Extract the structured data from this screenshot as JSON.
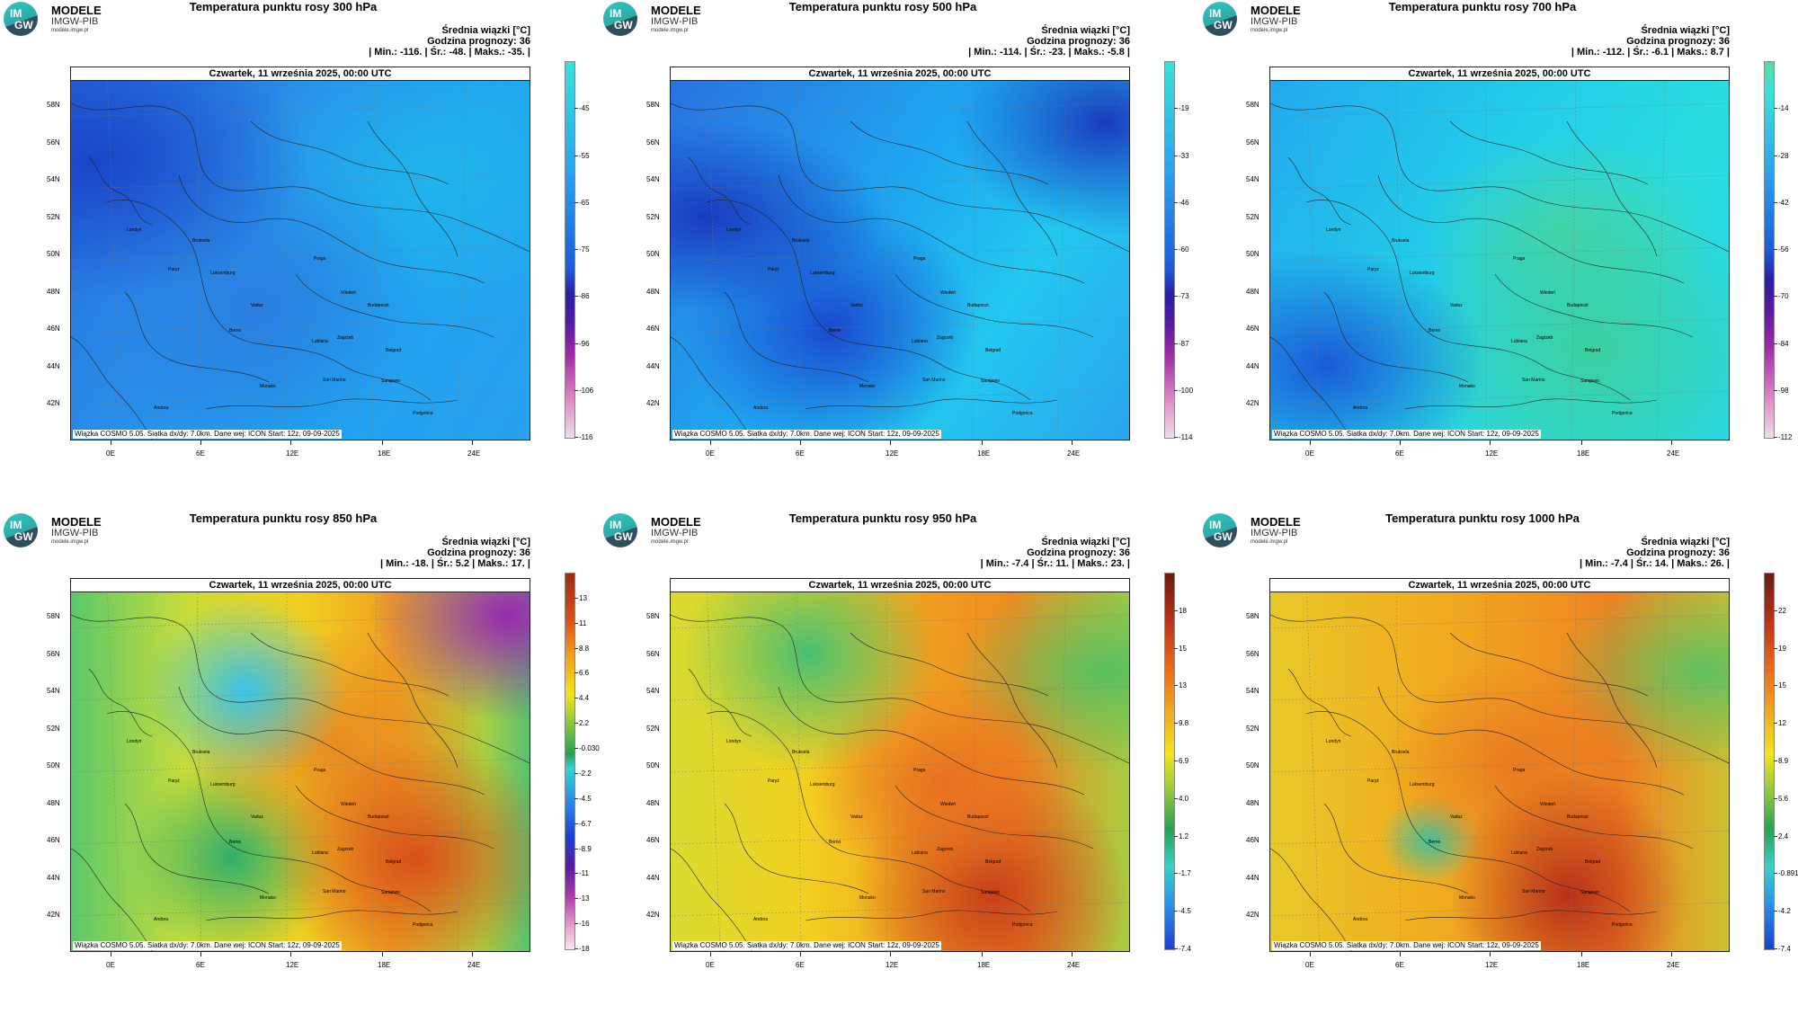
{
  "logo": {
    "name": "MODELE",
    "sub": "IMGW-PIB",
    "url": "modele.imgw.pl"
  },
  "common": {
    "legend_title": "Średnia wiązki [°C]",
    "forecast_hour": "Godzina prognozy: 36",
    "date": "Czwartek, 11 września 2025, 00:00 UTC",
    "footer": "Wiązka COSMO 5.05. Siatka dx/dy: 7.0km. Dane wej: ICON Start: 12z, 09-09-2025"
  },
  "lat_labels": [
    "58N",
    "56N",
    "54N",
    "52N",
    "50N",
    "48N",
    "46N",
    "44N",
    "42N"
  ],
  "lon_labels": [
    "0E",
    "6E",
    "12E",
    "18E",
    "24E"
  ],
  "cities": [
    "Londyn",
    "Bruksela",
    "Paryż",
    "Luksemburg",
    "Praga",
    "Berno",
    "Vaduz",
    "Wiedeń",
    "Budapeszt",
    "Zagrzeb",
    "Lublana",
    "Belgrad",
    "Sarajewo",
    "San Marino",
    "Monako",
    "Andora",
    "Podgorica"
  ],
  "panels": [
    {
      "title": "Temperatura punktu rosy 300 hPa",
      "stats": "| Min.:   -116. | Śr.:   -48. | Maks.:   -35. |",
      "colorbar": [
        "-45",
        "-55",
        "-65",
        "-75",
        "-86",
        "-96",
        "-106",
        "-116"
      ],
      "palette": "cold",
      "gradient": "linear-gradient(180deg,#38e2da 0%,#2aa0ef 30%,#1d5bd8 55%,#2a1ea0 62%,#5a1aa0 70%,#a02aa6 78%,#e08ac8 90%,#eae0ea 100%)"
    },
    {
      "title": "Temperatura punktu rosy 500 hPa",
      "stats": "| Min.:   -114. | Śr.:   -23. | Maks.:   -5.8 |",
      "colorbar": [
        "-19",
        "-33",
        "-46",
        "-60",
        "-73",
        "-87",
        "-100",
        "-114"
      ],
      "palette": "cold",
      "gradient": "linear-gradient(180deg,#38e2da 0%,#2aa0ef 30%,#1d5bd8 55%,#2a1ea0 62%,#5a1aa0 70%,#a02aa6 78%,#e08ac8 90%,#eae0ea 100%)"
    },
    {
      "title": "Temperatura punktu rosy 700 hPa",
      "stats": "| Min.:   -112. | Śr.:   -6.1 | Maks.:   8.7 |",
      "colorbar": [
        "-14",
        "-28",
        "-42",
        "-56",
        "-70",
        "-84",
        "-98",
        "-112"
      ],
      "palette": "cold",
      "gradient": "linear-gradient(180deg,#55dca0 0%,#38e2da 8%,#2aa0ef 30%,#1d5bd8 50%,#2a1ea0 58%,#5a1aa0 66%,#a02aa6 76%,#e08ac8 90%,#eae0ea 100%)"
    },
    {
      "title": "Temperatura punktu rosy 850 hPa",
      "stats": "| Min.:   -18. | Śr.:   5.2 | Maks.:   17. |",
      "colorbar": [
        "13",
        "11",
        "8.8",
        "6.6",
        "4.4",
        "2.2",
        "-0.030",
        "-2.2",
        "-4.5",
        "-6.7",
        "-8.9",
        "-11",
        "-13",
        "-16",
        "-18"
      ],
      "palette": "warm",
      "gradient": "linear-gradient(180deg,#9a2a12 0%,#d8501a 12%,#f0a020 22%,#f2e420 32%,#88c640 40%,#2aa050 48%,#38d0d8 52%,#2a90e8 60%,#1d3fd0 70%,#5a1aa0 78%,#b03aa8 86%,#e8a0cc 94%,#f0e8f0 100%)"
    },
    {
      "title": "Temperatura punktu rosy 950 hPa",
      "stats": "| Min.:   -7.4 | Śr.:   11. | Maks.:   23. |",
      "colorbar": [
        "18",
        "15",
        "13",
        "9.8",
        "6.9",
        "4.0",
        "1.2",
        "-1.7",
        "-4.5",
        "-7.4"
      ],
      "palette": "warm",
      "gradient": "linear-gradient(180deg,#6a1a10 0%,#b8301a 12%,#e86a1a 25%,#f0b020 38%,#f2e420 48%,#90c840 58%,#2aa050 68%,#38d0c8 78%,#2a90e8 88%,#1d3fd0 100%)"
    },
    {
      "title": "Temperatura punktu rosy 1000 hPa",
      "stats": "| Min.:   -7.4 | Śr.:   14. | Maks.:   26. |",
      "colorbar": [
        "22",
        "19",
        "15",
        "12",
        "8.9",
        "5.6",
        "2.4",
        "-0.891",
        "-4.2",
        "-7.4"
      ],
      "palette": "warm",
      "gradient": "linear-gradient(180deg,#6a1a10 0%,#b8301a 12%,#e86a1a 25%,#f0b020 38%,#f2e420 48%,#90c840 58%,#2aa050 68%,#38d0c8 78%,#2a90e8 88%,#1d3fd0 100%)"
    }
  ]
}
